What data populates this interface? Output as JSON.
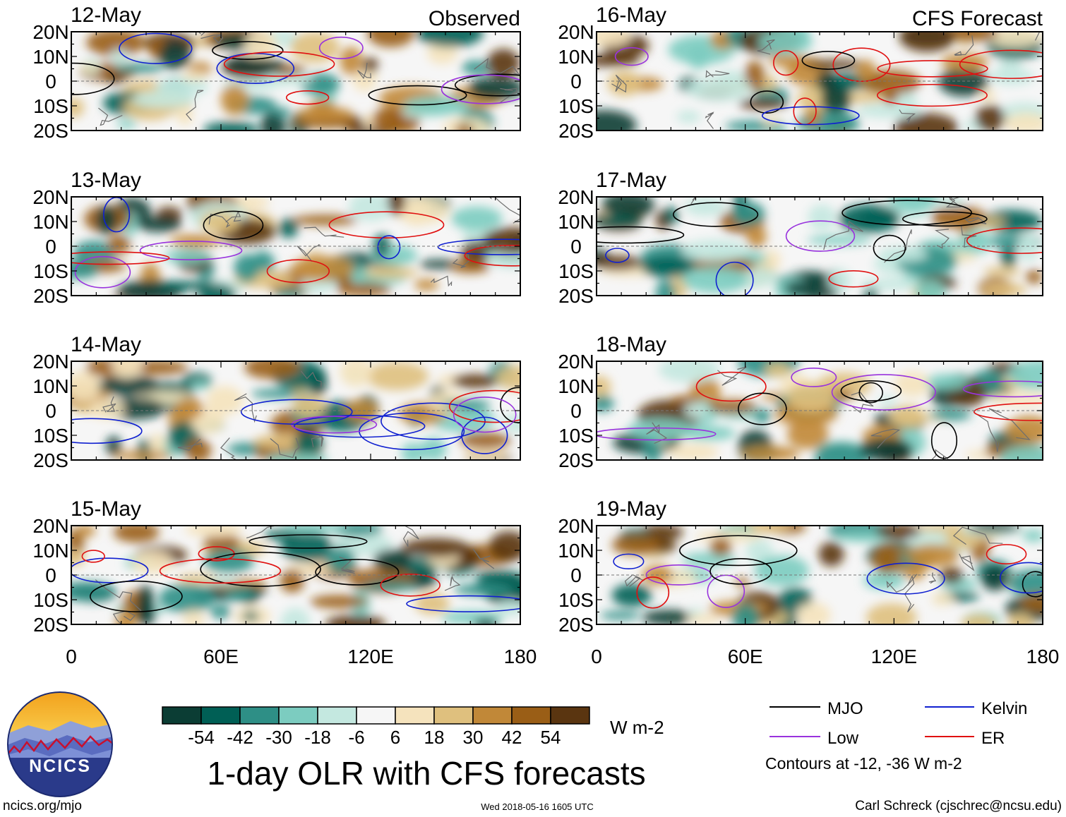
{
  "chart_data": {
    "type": "heatmap",
    "title": "1-day OLR with CFS forecasts",
    "variable": "OLR anomaly",
    "units": "W m-2",
    "x_axis": {
      "range": [
        0,
        180
      ],
      "ticks": [
        0,
        60,
        120,
        180
      ],
      "tick_labels": [
        "0",
        "60E",
        "120E",
        "180"
      ]
    },
    "y_axis": {
      "range": [
        -20,
        20
      ],
      "ticks": [
        20,
        10,
        0,
        -10,
        -20
      ],
      "tick_labels": [
        "20N",
        "10N",
        "0",
        "10S",
        "20S"
      ]
    },
    "column_titles": [
      "Observed",
      "CFS Forecast"
    ],
    "panels": [
      {
        "date": "12-May",
        "source": "Observed"
      },
      {
        "date": "13-May",
        "source": "Observed"
      },
      {
        "date": "14-May",
        "source": "Observed"
      },
      {
        "date": "15-May",
        "source": "Observed"
      },
      {
        "date": "16-May",
        "source": "CFS Forecast"
      },
      {
        "date": "17-May",
        "source": "CFS Forecast"
      },
      {
        "date": "18-May",
        "source": "CFS Forecast"
      },
      {
        "date": "19-May",
        "source": "CFS Forecast"
      }
    ],
    "colorbar": {
      "colors": [
        "#0b3d34",
        "#005f55",
        "#2e8f86",
        "#7cccc0",
        "#c4e8e0",
        "#f6f6f6",
        "#f5e3bd",
        "#dfc07e",
        "#c18838",
        "#9a5e16",
        "#5a3510"
      ],
      "labels": [
        "-54",
        "-42",
        "-30",
        "-18",
        "-6",
        "6",
        "18",
        "30",
        "42",
        "54"
      ],
      "units_label": "W m-2"
    },
    "legend": {
      "items": [
        {
          "label": "MJO",
          "color": "#000000"
        },
        {
          "label": "Kelvin",
          "color": "#1020d0"
        },
        {
          "label": "Low",
          "color": "#9933dd"
        },
        {
          "label": "ER",
          "color": "#e01010"
        }
      ],
      "note": "Contours at -12, -36 W m-2"
    }
  },
  "footer": {
    "url": "ncics.org/mjo",
    "timestamp": "Wed 2018-05-16 1605 UTC",
    "credit": "Carl Schreck (cjschrec@ncsu.edu)",
    "logo_text": "NCICS"
  }
}
